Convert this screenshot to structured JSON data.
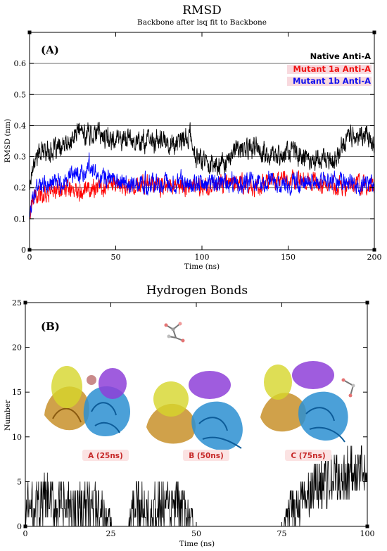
{
  "chart_data": [
    {
      "type": "line",
      "title": "RMSD",
      "subtitle": "Backbone after lsq fit to Backbone",
      "panel_label": "(A)",
      "xlabel": "Time (ns)",
      "ylabel": "RMSD (nm)",
      "xlim": [
        0,
        200
      ],
      "ylim": [
        0,
        0.7
      ],
      "xticks": [
        "0",
        "50",
        "100",
        "150",
        "200"
      ],
      "yticks": [
        "0",
        "0.1",
        "0.2",
        "0.3",
        "0.4",
        "0.5",
        "0.6"
      ],
      "grid": "horizontal",
      "legend_position": "top-right",
      "series": [
        {
          "name": "Native Anti-A",
          "color": "#000000",
          "x": [
            0,
            2,
            5,
            10,
            15,
            20,
            25,
            28,
            32,
            38,
            45,
            55,
            65,
            75,
            85,
            90,
            93,
            96,
            100,
            110,
            120,
            130,
            140,
            150,
            160,
            170,
            178,
            182,
            186,
            190,
            195,
            200
          ],
          "y": [
            0.2,
            0.28,
            0.31,
            0.32,
            0.32,
            0.33,
            0.35,
            0.39,
            0.37,
            0.38,
            0.36,
            0.36,
            0.35,
            0.35,
            0.34,
            0.35,
            0.37,
            0.3,
            0.29,
            0.27,
            0.32,
            0.33,
            0.3,
            0.32,
            0.3,
            0.29,
            0.29,
            0.35,
            0.37,
            0.36,
            0.38,
            0.33
          ]
        },
        {
          "name": "Mutant 1a Anti-A",
          "color": "#ff0000",
          "x": [
            0,
            2,
            5,
            10,
            15,
            20,
            25,
            30,
            40,
            50,
            60,
            70,
            80,
            90,
            100,
            110,
            120,
            130,
            140,
            150,
            160,
            170,
            180,
            190,
            200
          ],
          "y": [
            0.11,
            0.16,
            0.17,
            0.19,
            0.19,
            0.2,
            0.19,
            0.2,
            0.2,
            0.21,
            0.2,
            0.22,
            0.2,
            0.21,
            0.2,
            0.21,
            0.22,
            0.2,
            0.22,
            0.22,
            0.23,
            0.21,
            0.2,
            0.21,
            0.2
          ]
        },
        {
          "name": "Mutant 1b Anti-A",
          "color": "#0000ff",
          "x": [
            0,
            2,
            5,
            10,
            15,
            20,
            25,
            30,
            35,
            40,
            50,
            60,
            70,
            80,
            90,
            100,
            110,
            120,
            130,
            140,
            150,
            160,
            170,
            180,
            190,
            200
          ],
          "y": [
            0.1,
            0.18,
            0.2,
            0.21,
            0.21,
            0.22,
            0.24,
            0.25,
            0.27,
            0.24,
            0.22,
            0.21,
            0.21,
            0.22,
            0.22,
            0.21,
            0.22,
            0.21,
            0.22,
            0.22,
            0.21,
            0.22,
            0.22,
            0.22,
            0.21,
            0.21
          ]
        }
      ]
    },
    {
      "type": "line",
      "title": "Hydrogen Bonds",
      "panel_label": "(B)",
      "xlabel": "Time (ns)",
      "ylabel": "Number",
      "xlim": [
        0,
        100
      ],
      "ylim": [
        0,
        25
      ],
      "xticks": [
        "0",
        "25",
        "50",
        "75",
        "100"
      ],
      "yticks": [
        "0",
        "5",
        "10",
        "15",
        "20",
        "25"
      ],
      "grid": "none",
      "series": [
        {
          "color": "#000000",
          "x": [
            0,
            3,
            6,
            10,
            15,
            20,
            24,
            26,
            30,
            32,
            35,
            40,
            45,
            48,
            50,
            60,
            70,
            75,
            78,
            82,
            86,
            90,
            95,
            100
          ],
          "y": [
            2,
            2,
            3,
            2,
            2,
            2,
            1,
            0,
            0,
            2,
            2,
            2,
            2,
            1,
            0,
            0,
            0,
            0,
            2,
            3,
            5,
            5,
            6,
            6
          ]
        }
      ],
      "snapshots": [
        {
          "label": "A (25ns)"
        },
        {
          "label": "B (50ns)"
        },
        {
          "label": "C (75ns)"
        }
      ]
    }
  ]
}
